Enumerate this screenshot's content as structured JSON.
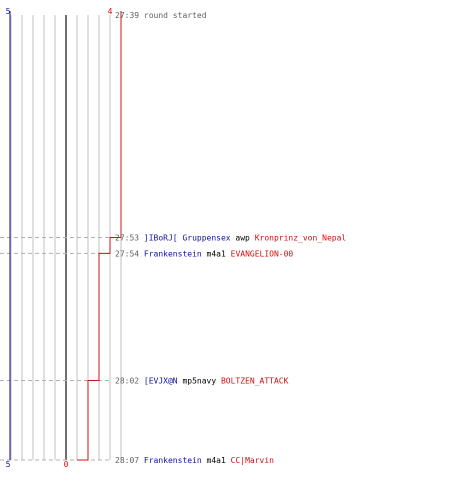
{
  "chart_data": {
    "type": "line",
    "title": "",
    "team_blue_start": "5",
    "team_red_start": "4",
    "team_blue_end": "5",
    "team_red_end": "0",
    "lanes": 10,
    "colors": {
      "blue": "#1010a0",
      "red": "#d01010",
      "grid": "#c0c0c0",
      "center": "#707070",
      "dash": "#b0b0b0",
      "time": "#606060",
      "neutral": "#000000"
    },
    "events": [
      {
        "time": "27:39",
        "kind": "start",
        "text": "round started",
        "lane": 10
      },
      {
        "time": "27:53",
        "kind": "kill",
        "killer": "]IBoRJ[ Gruppensex",
        "weapon": "awp",
        "victim": "Kronprinz_von_Nepal",
        "lane": 9
      },
      {
        "time": "27:54",
        "kind": "kill",
        "killer": "Frankenstein",
        "weapon": "m4a1",
        "victim": "EVANGELION-00",
        "lane": 8
      },
      {
        "time": "28:02",
        "kind": "kill",
        "killer": "[EVJX@N",
        "weapon": "mp5navy",
        "victim": "BOLTZEN_ATTACK",
        "lane": 7
      },
      {
        "time": "28:07",
        "kind": "kill",
        "killer": "Frankenstein",
        "weapon": "m4a1",
        "victim": "CC|Marvin",
        "lane": 6
      }
    ]
  }
}
